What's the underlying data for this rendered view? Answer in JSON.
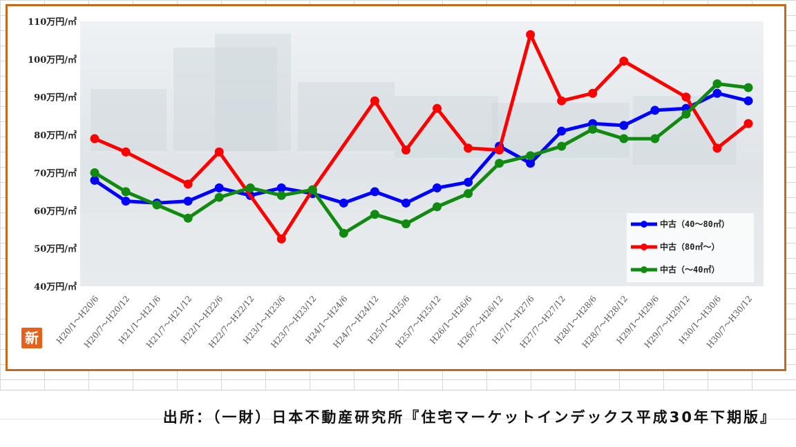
{
  "source_note": "出所：（一財）日本不動産研究所『住宅マーケットインデックス平成30年下期版』",
  "logo_text": "新",
  "colors": {
    "frame": "#c8661a",
    "series_mid": "#0000ff",
    "series_large": "#ff0000",
    "series_small": "#118a11"
  },
  "chart_data": {
    "type": "line",
    "title": "",
    "xlabel": "",
    "ylabel": "",
    "ylim": [
      40,
      110
    ],
    "y_ticks": [
      "40万円/㎡",
      "50万円/㎡",
      "60万円/㎡",
      "70万円/㎡",
      "80万円/㎡",
      "90万円/㎡",
      "100万円/㎡",
      "110万円/㎡"
    ],
    "grid": false,
    "legend_position": "right",
    "categories": [
      "H20/1～H20/6",
      "H20/7～H20/12",
      "H21/1～H21/6",
      "H21/7～H21/12",
      "H22/1～H22/6",
      "H22/7～H22/12",
      "H23/1～H23/6",
      "H23/7～H23/12",
      "H24/1～H24/6",
      "H24/7～H24/12",
      "H25/1～H25/6",
      "H25/7～H25/12",
      "H26/1～H26/6",
      "H26/7～H26/12",
      "H27/1～H27/6",
      "H27/7～H27/12",
      "H28/1～H28/6",
      "H28/7～H28/12",
      "H29/1～H29/6",
      "H29/7～H29/12",
      "H30/1～H30/6",
      "H30/7～H30/12"
    ],
    "series": [
      {
        "name": "中古（40～80㎡）",
        "color_key": "series_mid",
        "values": [
          68,
          62.5,
          62,
          62.5,
          66,
          64,
          66,
          64.5,
          62,
          65,
          62,
          66,
          67.5,
          77,
          72.5,
          81,
          83,
          82.5,
          86.5,
          87,
          91,
          89
        ]
      },
      {
        "name": "中古（80㎡～）",
        "color_key": "series_large",
        "values": [
          79,
          75.5,
          null,
          67,
          75.5,
          null,
          52.5,
          65.5,
          null,
          89,
          76,
          87,
          76.5,
          76,
          106.5,
          89,
          91,
          99.5,
          null,
          90,
          76.5,
          83
        ]
      },
      {
        "name": "中古（～40㎡）",
        "color_key": "series_small",
        "values": [
          70,
          65,
          61.5,
          58,
          63.5,
          66,
          64,
          65.5,
          54,
          59,
          56.5,
          61,
          64.5,
          72.5,
          74.5,
          77,
          81.5,
          79,
          79,
          85.5,
          93.5,
          92.5
        ]
      }
    ]
  }
}
